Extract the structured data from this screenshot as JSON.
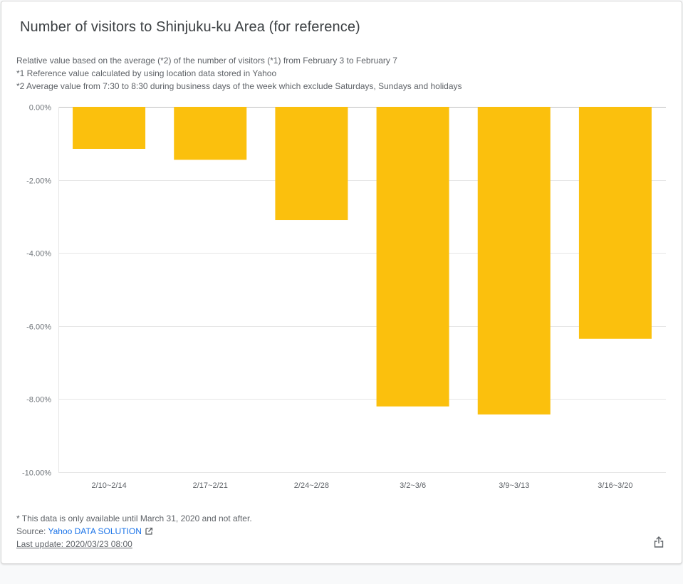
{
  "card": {
    "title": "Number of visitors to Shinjuku-ku Area (for reference)",
    "notes": [
      "Relative value based on the average (*2) of the number of visitors (*1) from February 3 to February 7",
      "*1 Reference value calculated by using location data stored in Yahoo",
      "*2 Average value from 7:30 to 8:30 during business days of the week which exclude Saturdays, Sundays and holidays"
    ]
  },
  "chart_data": {
    "type": "bar",
    "categories": [
      "2/10~2/14",
      "2/17~2/21",
      "2/24~2/28",
      "3/2~3/6",
      "3/9~3/13",
      "3/16~3/20"
    ],
    "values": [
      -1.15,
      -1.45,
      -3.1,
      -8.2,
      -8.42,
      -6.35
    ],
    "ylim": [
      -10,
      0
    ],
    "yticks": [
      0,
      -2,
      -4,
      -6,
      -8,
      -10
    ],
    "ytick_labels": [
      "0.00%",
      "-2.00%",
      "-4.00%",
      "-6.00%",
      "-8.00%",
      "-10.00%"
    ],
    "grid": true,
    "bar_color": "#fbc00d"
  },
  "footer": {
    "availability_note": "* This data is only available until March 31, 2020 and not after.",
    "source_prefix": "Source: ",
    "source_link": "Yahoo DATA SOLUTION",
    "last_update": "Last update: 2020/03/23 08:00"
  },
  "icons": {
    "external_link": "external-link-icon",
    "share": "share-icon"
  }
}
